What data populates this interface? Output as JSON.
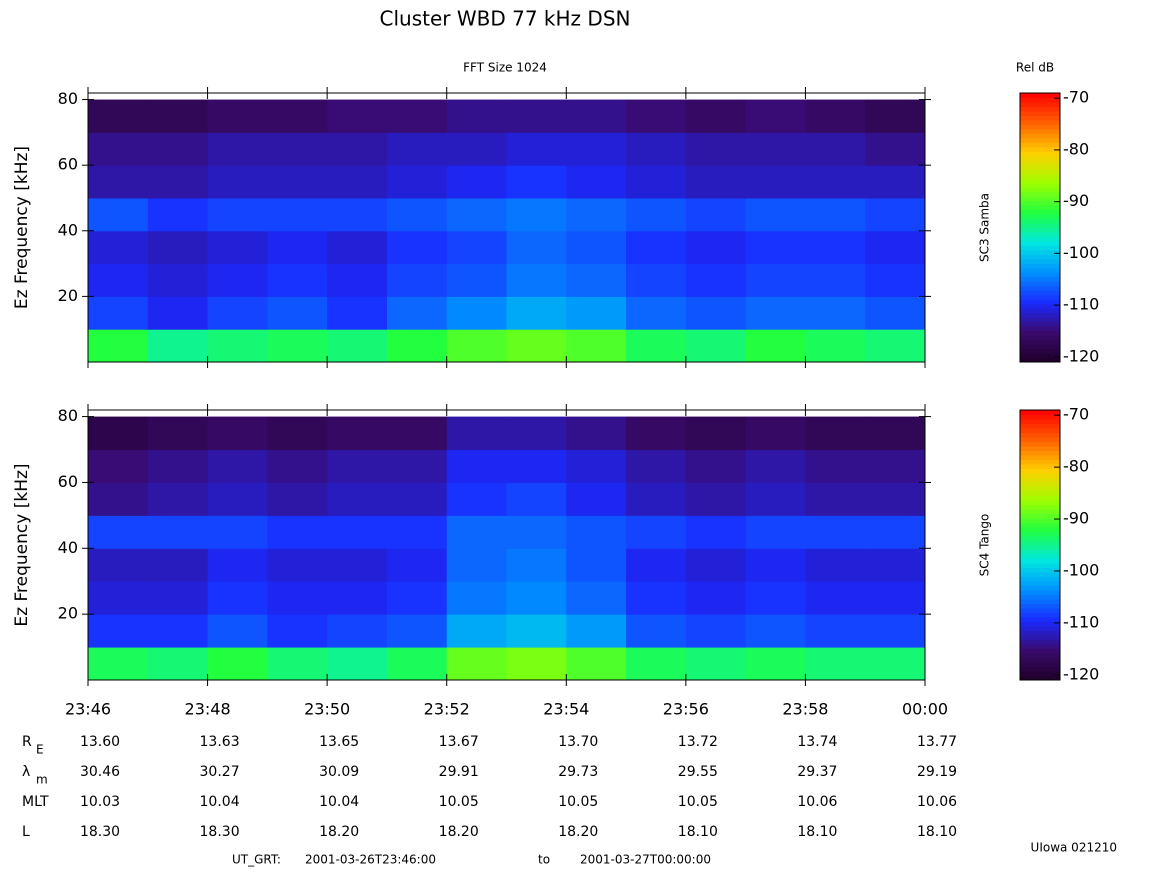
{
  "title": "Cluster WBD 77 kHz DSN",
  "subtitle": "FFT Size 1024",
  "chart_data": [
    {
      "type": "heatmap",
      "spacecraft": "SC3 Samba",
      "ylabel": "Ez Frequency [kHz]",
      "ylim": [
        0,
        82
      ],
      "yticks": [
        20,
        40,
        60,
        80
      ],
      "y_bin_width": 10,
      "clim": [
        -121,
        -69
      ],
      "colorbar_title": "Rel dB",
      "colorbar_ticks": [
        -70,
        -80,
        -90,
        -100,
        -110,
        -120
      ],
      "colormap": [
        "#1e0028",
        "#3a0a6e",
        "#1a2aff",
        "#0090ff",
        "#00e8e0",
        "#20ff40",
        "#a0ff00",
        "#ffd000",
        "#ff6000",
        "#ff0000"
      ],
      "z": [
        [
          -92,
          -95,
          -94,
          -93,
          -94,
          -92,
          -90,
          -89,
          -90,
          -93,
          -94,
          -92,
          -93,
          -94
        ],
        [
          -108,
          -110,
          -108,
          -107,
          -109,
          -106,
          -104,
          -102,
          -103,
          -106,
          -107,
          -106,
          -106,
          -107
        ],
        [
          -110,
          -111,
          -110,
          -109,
          -110,
          -108,
          -107,
          -105,
          -106,
          -108,
          -109,
          -108,
          -108,
          -109
        ],
        [
          -111,
          -112,
          -111,
          -110,
          -111,
          -109,
          -108,
          -106,
          -107,
          -109,
          -110,
          -109,
          -109,
          -110
        ],
        [
          -107,
          -109,
          -108,
          -108,
          -108,
          -107,
          -106,
          -105,
          -106,
          -107,
          -108,
          -107,
          -107,
          -108
        ],
        [
          -113,
          -113,
          -112,
          -112,
          -112,
          -111,
          -110,
          -109,
          -110,
          -111,
          -112,
          -112,
          -112,
          -112
        ],
        [
          -114,
          -114,
          -113,
          -113,
          -113,
          -112,
          -112,
          -111,
          -111,
          -112,
          -113,
          -113,
          -113,
          -114
        ],
        [
          -117,
          -117,
          -116,
          -116,
          -115,
          -115,
          -114,
          -114,
          -114,
          -115,
          -116,
          -115,
          -116,
          -117
        ]
      ]
    },
    {
      "type": "heatmap",
      "spacecraft": "SC4 Tango",
      "ylabel": "Ez Frequency [kHz]",
      "ylim": [
        0,
        82
      ],
      "yticks": [
        20,
        40,
        60,
        80
      ],
      "y_bin_width": 10,
      "clim": [
        -121,
        -69
      ],
      "colorbar_ticks": [
        -70,
        -80,
        -90,
        -100,
        -110,
        -120
      ],
      "colormap": [
        "#1e0028",
        "#3a0a6e",
        "#1a2aff",
        "#0090ff",
        "#00e8e0",
        "#20ff40",
        "#a0ff00",
        "#ffd000",
        "#ff6000",
        "#ff0000"
      ],
      "xticks": [
        "23:46",
        "23:48",
        "23:50",
        "23:52",
        "23:54",
        "23:56",
        "23:58",
        "00:00"
      ],
      "z": [
        [
          -93,
          -94,
          -92,
          -94,
          -95,
          -93,
          -89,
          -88,
          -90,
          -93,
          -94,
          -93,
          -94,
          -94
        ],
        [
          -109,
          -109,
          -107,
          -109,
          -108,
          -107,
          -102,
          -101,
          -103,
          -107,
          -108,
          -107,
          -108,
          -108
        ],
        [
          -111,
          -111,
          -109,
          -110,
          -110,
          -109,
          -105,
          -104,
          -106,
          -109,
          -110,
          -109,
          -110,
          -110
        ],
        [
          -112,
          -112,
          -110,
          -111,
          -111,
          -110,
          -106,
          -105,
          -107,
          -110,
          -111,
          -110,
          -111,
          -111
        ],
        [
          -108,
          -108,
          -108,
          -109,
          -109,
          -109,
          -106,
          -106,
          -107,
          -108,
          -109,
          -108,
          -108,
          -108
        ],
        [
          -114,
          -113,
          -112,
          -113,
          -112,
          -112,
          -109,
          -108,
          -110,
          -112,
          -113,
          -112,
          -113,
          -113
        ],
        [
          -115,
          -114,
          -113,
          -114,
          -113,
          -113,
          -110,
          -110,
          -111,
          -113,
          -114,
          -113,
          -114,
          -114
        ],
        [
          -118,
          -117,
          -116,
          -117,
          -116,
          -116,
          -113,
          -113,
          -114,
          -116,
          -117,
          -116,
          -117,
          -117
        ]
      ]
    }
  ],
  "ephemeris": {
    "rows": [
      {
        "label": "R",
        "sub": "E",
        "values": [
          "13.60",
          "13.63",
          "13.65",
          "13.67",
          "13.70",
          "13.72",
          "13.74",
          "13.77"
        ]
      },
      {
        "label": "λ",
        "sub": "m",
        "values": [
          "30.46",
          "30.27",
          "30.09",
          "29.91",
          "29.73",
          "29.55",
          "29.37",
          "29.19"
        ]
      },
      {
        "label": "MLT",
        "values": [
          "10.03",
          "10.04",
          "10.04",
          "10.05",
          "10.05",
          "10.05",
          "10.06",
          "10.06"
        ]
      },
      {
        "label": "L",
        "values": [
          "18.30",
          "18.30",
          "18.20",
          "18.20",
          "18.20",
          "18.10",
          "18.10",
          "18.10"
        ]
      }
    ]
  },
  "footer": {
    "prefix": "UT_GRT:",
    "start": "2001-03-26T23:46:00",
    "to": "to",
    "end": "2001-03-27T00:00:00"
  },
  "credit": "UIowa 021210"
}
